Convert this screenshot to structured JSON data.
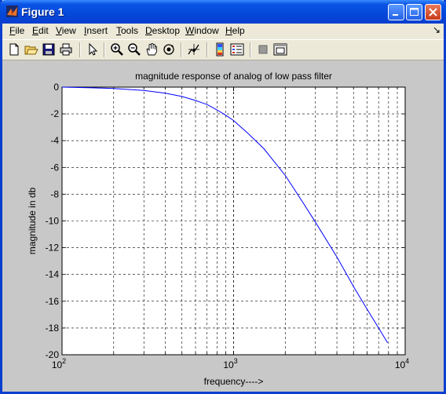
{
  "window": {
    "title": "Figure 1"
  },
  "menu": [
    {
      "label": "File",
      "u": "F",
      "rest": "ile"
    },
    {
      "label": "Edit",
      "u": "E",
      "rest": "dit"
    },
    {
      "label": "View",
      "u": "V",
      "rest": "iew"
    },
    {
      "label": "Insert",
      "u": "I",
      "rest": "nsert"
    },
    {
      "label": "Tools",
      "u": "T",
      "rest": "ools"
    },
    {
      "label": "Desktop",
      "u": "D",
      "rest": "esktop"
    },
    {
      "label": "Window",
      "u": "W",
      "rest": "indow"
    },
    {
      "label": "Help",
      "u": "H",
      "rest": "elp"
    }
  ],
  "toolbar_icons": [
    "new-figure-icon",
    "open-file-icon",
    "save-icon",
    "print-icon",
    "edit-plot-arrow-icon",
    "zoom-in-icon",
    "zoom-out-icon",
    "pan-hand-icon",
    "rotate-3d-icon",
    "data-cursor-icon",
    "colorbar-icon",
    "legend-icon",
    "hide-plot-tools-icon",
    "show-plot-tools-icon"
  ],
  "chart_data": {
    "type": "line",
    "title": "magnitude response of analog of low pass filter",
    "xlabel": "frequency---->",
    "ylabel": "magnitude in db",
    "xscale": "log",
    "xlim": [
      100,
      10000
    ],
    "ylim": [
      -20,
      0
    ],
    "xticks": [
      100,
      1000,
      10000
    ],
    "xtick_labels": [
      {
        "base": "10",
        "exp": "2"
      },
      {
        "base": "10",
        "exp": "3"
      },
      {
        "base": "10",
        "exp": "4"
      }
    ],
    "yticks": [
      0,
      -2,
      -4,
      -6,
      -8,
      -10,
      -12,
      -14,
      -16,
      -18,
      -20
    ],
    "ytick_labels": [
      "0",
      "-2",
      "-4",
      "-6",
      "-8",
      "-10",
      "-12",
      "-14",
      "-16",
      "-18",
      "-20"
    ],
    "grid": true,
    "line_color": "#0000ff",
    "series": [
      {
        "x": [
          100,
          150,
          200,
          300,
          400,
          500,
          600,
          700,
          800,
          900,
          1000,
          1200,
          1500,
          2000,
          2500,
          3000,
          4000,
          5000,
          6000,
          7000,
          7900
        ],
        "y": [
          0,
          -0.05,
          -0.1,
          -0.25,
          -0.45,
          -0.7,
          -1.0,
          -1.3,
          -1.7,
          -2.1,
          -2.5,
          -3.4,
          -4.6,
          -6.6,
          -8.5,
          -10.1,
          -12.7,
          -14.9,
          -16.6,
          -18.0,
          -19.1
        ]
      }
    ]
  }
}
